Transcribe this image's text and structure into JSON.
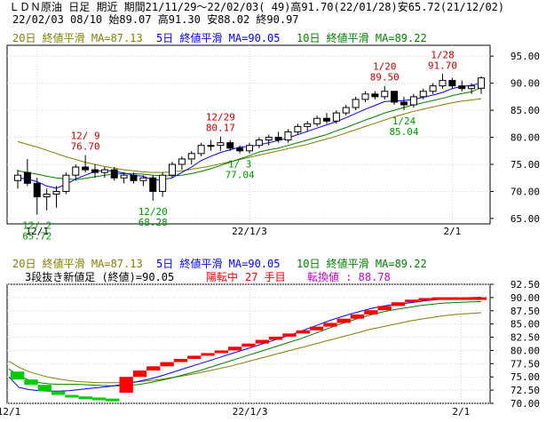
{
  "header": {
    "line1": "ＬＤＮ原油 日足 期近 期間21/11/29～22/02/03( 49)高91.70(22/01/28)安65.72(21/12/02)",
    "line2": "22/02/03 08/10 始89.07 高91.30 安88.02 終90.97"
  },
  "legend": {
    "ma20": "20日 終値平滑 MA=87.13",
    "ma5": "5日 終値平滑 MA=90.05",
    "ma10": "10日 終値平滑 MA=89.22"
  },
  "lower_info": {
    "label": "3段抜き新値足 (終値)=90.05",
    "status": "陽転中",
    "count": "27 手目",
    "conv": "転換値 : 88.78"
  },
  "colors": {
    "background": "#ffffff",
    "plot_border": "#000000",
    "grid": "#d3d3d3",
    "ma20": "#808000",
    "ma5": "#0000ff",
    "ma10": "#008000",
    "candle_up": "#ffffff",
    "candle_down": "#000000",
    "annot_high": "#cc0000",
    "annot_low": "#009900",
    "brick_up": "#ff0000",
    "brick_down": "#00cc00",
    "status_text": "#ff0000",
    "conv_text": "#cc00cc"
  },
  "chart_data": [
    {
      "type": "candlestick",
      "title": "",
      "ylim": [
        64,
        97
      ],
      "yticks": [
        "95.00",
        "90.00",
        "85.00",
        "80.00",
        "75.00",
        "70.00",
        "65.00"
      ],
      "ytick_values": [
        95,
        90,
        85,
        80,
        75,
        70,
        65
      ],
      "xticks": [
        "12/1",
        "22/1/3",
        "2/1"
      ],
      "xtick_index": [
        2,
        24,
        45
      ],
      "grid": true,
      "ohlc": [
        [
          72.0,
          74.0,
          70.5,
          73.0
        ],
        [
          73.5,
          76.0,
          71.0,
          71.5
        ],
        [
          71.5,
          72.5,
          65.72,
          69.0
        ],
        [
          69.0,
          70.5,
          66.5,
          69.5
        ],
        [
          69.5,
          71.0,
          67.0,
          70.0
        ],
        [
          70.0,
          73.5,
          69.5,
          73.0
        ],
        [
          73.0,
          75.0,
          72.0,
          74.5
        ],
        [
          74.5,
          76.7,
          73.5,
          74.0
        ],
        [
          74.0,
          75.0,
          72.5,
          73.5
        ],
        [
          73.5,
          74.5,
          72.5,
          74.0
        ],
        [
          74.0,
          74.5,
          72.0,
          72.5
        ],
        [
          72.5,
          73.5,
          71.5,
          73.0
        ],
        [
          73.0,
          73.5,
          71.5,
          72.0
        ],
        [
          72.0,
          73.0,
          71.0,
          72.5
        ],
        [
          72.5,
          73.0,
          68.28,
          70.0
        ],
        [
          70.0,
          73.5,
          69.0,
          73.0
        ],
        [
          73.0,
          75.5,
          72.5,
          75.0
        ],
        [
          75.0,
          76.5,
          74.0,
          76.0
        ],
        [
          76.0,
          77.5,
          75.0,
          77.0
        ],
        [
          77.0,
          79.0,
          76.5,
          78.5
        ],
        [
          78.5,
          79.5,
          77.5,
          78.5
        ],
        [
          78.5,
          80.17,
          77.5,
          79.0
        ],
        [
          79.0,
          79.5,
          77.5,
          78.0
        ],
        [
          78.0,
          78.5,
          77.04,
          77.5
        ],
        [
          77.5,
          79.0,
          77.0,
          78.5
        ],
        [
          78.5,
          80.0,
          78.0,
          79.5
        ],
        [
          79.5,
          80.5,
          78.5,
          80.0
        ],
        [
          80.0,
          81.0,
          79.0,
          79.5
        ],
        [
          79.5,
          81.5,
          79.0,
          81.0
        ],
        [
          81.0,
          82.5,
          80.5,
          82.0
        ],
        [
          82.0,
          83.0,
          81.0,
          82.5
        ],
        [
          82.5,
          84.0,
          82.0,
          83.5
        ],
        [
          83.5,
          84.5,
          82.5,
          83.0
        ],
        [
          83.0,
          85.0,
          82.5,
          84.5
        ],
        [
          84.5,
          86.0,
          84.0,
          85.5
        ],
        [
          85.5,
          87.5,
          85.0,
          87.0
        ],
        [
          87.0,
          88.5,
          86.5,
          88.0
        ],
        [
          88.0,
          88.5,
          87.0,
          87.5
        ],
        [
          87.5,
          89.5,
          87.0,
          88.5
        ],
        [
          88.5,
          88.5,
          86.0,
          86.5
        ],
        [
          86.5,
          87.5,
          85.04,
          86.0
        ],
        [
          86.0,
          88.0,
          85.5,
          87.5
        ],
        [
          87.5,
          89.0,
          87.0,
          88.5
        ],
        [
          88.5,
          90.0,
          88.0,
          89.5
        ],
        [
          89.5,
          91.7,
          89.0,
          90.5
        ],
        [
          90.5,
          91.0,
          89.0,
          89.5
        ],
        [
          89.5,
          90.5,
          88.5,
          89.0
        ],
        [
          89.0,
          90.0,
          88.0,
          89.5
        ],
        [
          89.07,
          91.3,
          88.02,
          90.97
        ]
      ],
      "ma5": [
        72.5,
        72.3,
        71.8,
        71.0,
        70.6,
        71.3,
        72.3,
        73.0,
        73.7,
        73.9,
        73.7,
        73.4,
        73.0,
        72.8,
        72.1,
        72.2,
        72.5,
        73.5,
        74.5,
        75.7,
        76.5,
        77.2,
        77.7,
        78.2,
        78.3,
        78.6,
        79.0,
        79.4,
        79.9,
        80.5,
        81.1,
        81.7,
        82.3,
        82.9,
        83.6,
        84.4,
        85.2,
        85.9,
        86.6,
        86.7,
        86.8,
        87.0,
        87.4,
        87.8,
        88.3,
        89.0,
        89.4,
        89.6,
        90.05
      ],
      "ma10": [
        73.8,
        73.5,
        73.2,
        72.8,
        72.5,
        72.3,
        72.2,
        72.4,
        72.7,
        73.0,
        73.2,
        73.3,
        73.3,
        73.2,
        73.0,
        72.9,
        72.9,
        73.0,
        73.3,
        73.7,
        74.2,
        74.8,
        75.4,
        76.0,
        76.6,
        77.3,
        77.7,
        78.0,
        78.5,
        79.0,
        79.5,
        80.0,
        80.5,
        81.2,
        81.8,
        82.5,
        83.2,
        83.8,
        84.5,
        85.0,
        85.5,
        86.0,
        86.4,
        86.8,
        87.2,
        87.7,
        88.1,
        88.4,
        89.22
      ],
      "ma20": [
        79.2,
        78.7,
        78.2,
        77.6,
        77.0,
        76.4,
        75.9,
        75.4,
        75.0,
        74.6,
        74.3,
        74.0,
        73.8,
        73.6,
        73.5,
        73.5,
        73.6,
        73.8,
        74.1,
        74.4,
        74.7,
        75.1,
        75.5,
        75.9,
        76.3,
        76.7,
        77.1,
        77.5,
        77.9,
        78.3,
        78.7,
        79.2,
        79.7,
        80.2,
        80.8,
        81.4,
        82.0,
        82.6,
        83.2,
        83.8,
        84.3,
        84.8,
        85.2,
        85.6,
        86.0,
        86.4,
        86.7,
        86.9,
        87.13
      ],
      "annotations": [
        {
          "date": "12/ 9",
          "value": "76.70",
          "kind": "high",
          "index": 7,
          "price": 76.7
        },
        {
          "date": "12/29",
          "value": "80.17",
          "kind": "high",
          "index": 21,
          "price": 80.17
        },
        {
          "date": "1/20",
          "value": "89.50",
          "kind": "high",
          "index": 38,
          "price": 89.5
        },
        {
          "date": "1/28",
          "value": "91.70",
          "kind": "high",
          "index": 44,
          "price": 91.7
        },
        {
          "date": "12/ 2",
          "value": "65.72",
          "kind": "low",
          "index": 2,
          "price": 65.72
        },
        {
          "date": "12/20",
          "value": "68.28",
          "kind": "low",
          "index": 14,
          "price": 68.28
        },
        {
          "date": "1/ 3",
          "value": "77.04",
          "kind": "low",
          "index": 23,
          "price": 77.04
        },
        {
          "date": "1/24",
          "value": "85.04",
          "kind": "low",
          "index": 40,
          "price": 85.04
        }
      ]
    },
    {
      "type": "three-line-break",
      "title": "",
      "ylim": [
        70,
        92.5
      ],
      "yticks": [
        "92.50",
        "90.00",
        "87.50",
        "85.00",
        "82.50",
        "80.00",
        "77.50",
        "75.00",
        "72.50",
        "70.00"
      ],
      "ytick_values": [
        92.5,
        90,
        87.5,
        85,
        82.5,
        80,
        77.5,
        75,
        72.5,
        70
      ],
      "xticks": [
        "12/1",
        "22/1/3",
        "2/1"
      ],
      "xtick_index": [
        0,
        24,
        45
      ],
      "grid": true,
      "bricks": [
        {
          "dir": "down",
          "from": 76.0,
          "to": 74.5
        },
        {
          "dir": "down",
          "from": 74.5,
          "to": 73.5
        },
        {
          "dir": "down",
          "from": 73.5,
          "to": 72.3
        },
        {
          "dir": "down",
          "from": 72.3,
          "to": 71.6
        },
        {
          "dir": "down",
          "from": 71.6,
          "to": 71.3
        },
        {
          "dir": "down",
          "from": 71.3,
          "to": 71.1
        },
        {
          "dir": "down",
          "from": 71.1,
          "to": 70.9
        },
        {
          "dir": "down",
          "from": 70.9,
          "to": 70.7
        },
        {
          "dir": "up",
          "from": 72.0,
          "to": 75.0
        },
        {
          "dir": "up",
          "from": 75.0,
          "to": 76.2
        },
        {
          "dir": "up",
          "from": 76.2,
          "to": 77.0
        },
        {
          "dir": "up",
          "from": 77.0,
          "to": 77.8
        },
        {
          "dir": "up",
          "from": 77.8,
          "to": 78.4
        },
        {
          "dir": "up",
          "from": 78.4,
          "to": 79.0
        },
        {
          "dir": "up",
          "from": 79.0,
          "to": 79.5
        },
        {
          "dir": "up",
          "from": 79.5,
          "to": 80.0
        },
        {
          "dir": "up",
          "from": 80.0,
          "to": 80.7
        },
        {
          "dir": "up",
          "from": 80.7,
          "to": 81.3
        },
        {
          "dir": "up",
          "from": 81.3,
          "to": 82.0
        },
        {
          "dir": "up",
          "from": 82.0,
          "to": 82.6
        },
        {
          "dir": "up",
          "from": 82.6,
          "to": 83.2
        },
        {
          "dir": "up",
          "from": 83.2,
          "to": 83.8
        },
        {
          "dir": "up",
          "from": 83.8,
          "to": 84.5
        },
        {
          "dir": "up",
          "from": 84.5,
          "to": 85.2
        },
        {
          "dir": "up",
          "from": 85.2,
          "to": 86.0
        },
        {
          "dir": "up",
          "from": 86.0,
          "to": 86.8
        },
        {
          "dir": "up",
          "from": 86.8,
          "to": 87.6
        },
        {
          "dir": "up",
          "from": 87.6,
          "to": 88.4
        },
        {
          "dir": "up",
          "from": 88.4,
          "to": 89.1
        },
        {
          "dir": "up",
          "from": 89.1,
          "to": 89.6
        },
        {
          "dir": "up",
          "from": 89.6,
          "to": 89.9
        },
        {
          "dir": "up",
          "from": 89.9,
          "to": 90.05
        },
        {
          "dir": "up",
          "from": 89.95,
          "to": 90.05
        },
        {
          "dir": "up",
          "from": 89.95,
          "to": 90.05
        },
        {
          "dir": "up",
          "from": 89.95,
          "to": 90.05
        }
      ],
      "ma_lines": {
        "ma5": [
          75.0,
          73.0,
          72.6,
          72.4,
          72.3,
          72.3,
          72.4,
          72.6,
          72.8,
          73.0,
          73.2,
          73.5,
          73.8,
          74.2,
          74.6,
          75.1,
          75.7,
          76.3,
          76.9,
          77.5,
          78.1,
          78.7,
          79.3,
          79.9,
          80.5,
          81.1,
          81.7,
          82.3,
          82.9,
          83.6,
          84.3,
          85.0,
          85.7,
          86.3,
          86.9,
          87.4,
          87.9,
          88.3,
          88.6,
          88.8,
          89.0,
          89.3,
          89.5,
          89.7,
          89.8,
          89.9,
          90.0,
          90.05
        ],
        "ma10": [
          76.5,
          75.2,
          74.4,
          73.9,
          73.7,
          73.6,
          73.6,
          73.6,
          73.5,
          73.4,
          73.3,
          73.3,
          73.4,
          73.6,
          73.9,
          74.3,
          74.7,
          75.2,
          75.7,
          76.2,
          76.8,
          77.4,
          78.0,
          78.6,
          79.2,
          79.8,
          80.4,
          81.0,
          81.6,
          82.2,
          82.9,
          83.6,
          84.3,
          85.0,
          85.6,
          86.2,
          86.7,
          87.2,
          87.6,
          87.9,
          88.2,
          88.5,
          88.7,
          88.9,
          89.0,
          89.1,
          89.2,
          89.22
        ],
        "ma20": [
          78.0,
          76.8,
          76.0,
          75.4,
          74.9,
          74.6,
          74.3,
          74.1,
          74.0,
          73.9,
          73.9,
          73.9,
          74.0,
          74.1,
          74.3,
          74.5,
          74.8,
          75.1,
          75.4,
          75.8,
          76.2,
          76.6,
          77.0,
          77.5,
          78.0,
          78.5,
          79.0,
          79.5,
          80.0,
          80.5,
          81.0,
          81.5,
          82.0,
          82.5,
          83.0,
          83.5,
          84.0,
          84.4,
          84.8,
          85.2,
          85.6,
          85.9,
          86.2,
          86.5,
          86.7,
          86.9,
          87.0,
          87.13
        ]
      }
    }
  ]
}
